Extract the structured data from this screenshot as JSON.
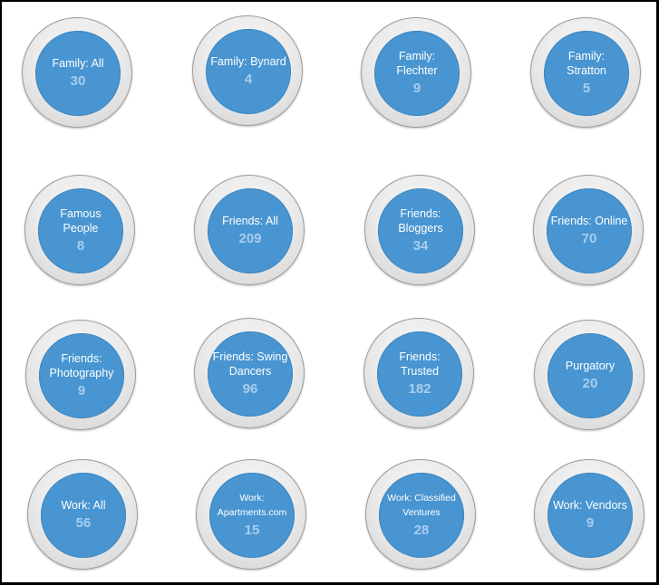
{
  "groups": [
    {
      "label": "Family: All",
      "count": "30"
    },
    {
      "label": "Family: Bynard",
      "count": "4"
    },
    {
      "label": "Family: Flechter",
      "count": "9"
    },
    {
      "label": "Family: Stratton",
      "count": "5"
    },
    {
      "label": "Famous People",
      "count": "8"
    },
    {
      "label": "Friends: All",
      "count": "209"
    },
    {
      "label": "Friends: Bloggers",
      "count": "34"
    },
    {
      "label": "Friends: Online",
      "count": "70"
    },
    {
      "label": "Friends: Photography",
      "count": "9"
    },
    {
      "label": "Friends: Swing Dancers",
      "count": "96"
    },
    {
      "label": "Friends: Trusted",
      "count": "182"
    },
    {
      "label": "Purgatory",
      "count": "20"
    },
    {
      "label": "Work: All",
      "count": "56"
    },
    {
      "label": "Work: Apartments.com",
      "count": "15"
    },
    {
      "label": "Work: Classified Ventures",
      "count": "28"
    },
    {
      "label": "Work: Vendors",
      "count": "9"
    }
  ],
  "colors": {
    "circle_fill": "#4895d1",
    "count_text": "#a8cdee",
    "ring": "#e6e6e6"
  }
}
